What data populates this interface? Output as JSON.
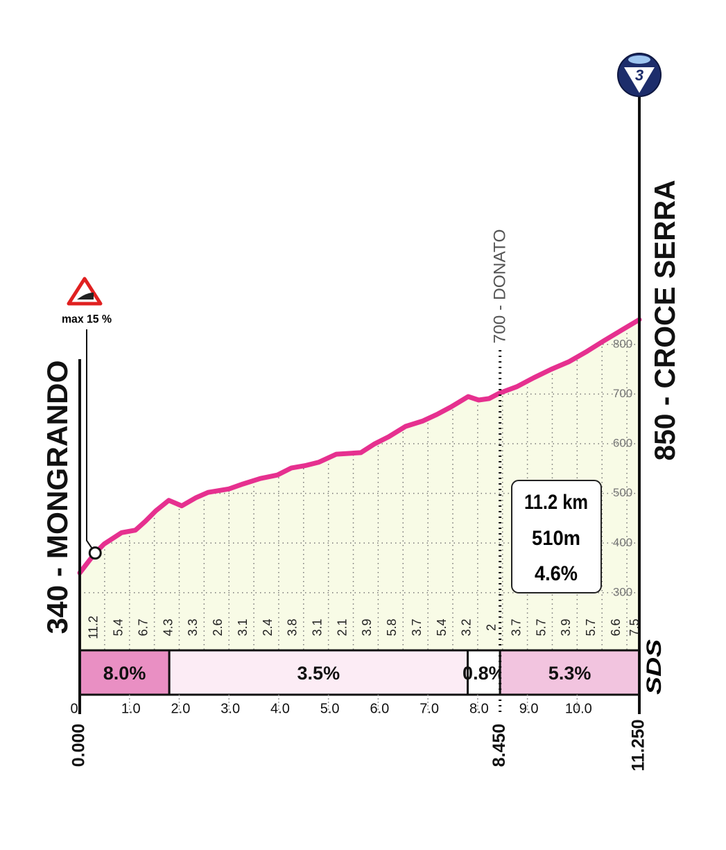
{
  "chart_data": {
    "type": "area",
    "color": "#e6308f",
    "fill": "#f8fbe6",
    "x": [
      0,
      0.31,
      0.49,
      0.84,
      1.12,
      1.32,
      1.53,
      1.79,
      2.05,
      2.33,
      2.58,
      3.0,
      3.28,
      3.63,
      3.97,
      4.25,
      4.53,
      4.81,
      5.16,
      5.65,
      5.93,
      6.21,
      6.55,
      6.9,
      7.18,
      7.46,
      7.81,
      8.02,
      8.23,
      8.44,
      8.79,
      9.13,
      9.48,
      9.83,
      10.18,
      10.53,
      10.88,
      11.25
    ],
    "values": [
      340,
      380,
      398,
      421,
      426,
      444,
      465,
      486,
      475,
      491,
      502,
      509,
      519,
      530,
      537,
      551,
      556,
      563,
      579,
      582,
      600,
      614,
      635,
      646,
      659,
      674,
      695,
      688,
      691,
      702,
      715,
      733,
      750,
      765,
      785,
      807,
      828,
      850
    ],
    "xlim": [
      0,
      11.25
    ],
    "ylim": [
      184,
      850
    ],
    "xticks": [
      0,
      {
        "value": 1,
        "label": "1.0"
      },
      {
        "value": 2,
        "label": "2.0"
      },
      {
        "value": 3,
        "label": "3.0"
      },
      {
        "value": 4,
        "label": "4.0"
      },
      {
        "value": 5,
        "label": "5.0"
      },
      {
        "value": 6,
        "label": "6.0"
      },
      {
        "value": 7,
        "label": "7.0"
      },
      {
        "value": 8,
        "label": "8.0"
      },
      {
        "value": 9,
        "label": "9.0"
      },
      {
        "value": 10,
        "label": "10.0"
      }
    ],
    "yticks": [
      300,
      400,
      500,
      600,
      700,
      800
    ],
    "grid": true,
    "grades": {
      "values": [
        11.2,
        5.4,
        6.7,
        4.3,
        3.3,
        2.6,
        3.1,
        2.4,
        3.8,
        3.1,
        2.1,
        3.9,
        5.8,
        3.7,
        5.4,
        3.2,
        2.0,
        3.7,
        5.7,
        3.9,
        5.7,
        6.6,
        7.5
      ],
      "bins": [
        0,
        0.5,
        1,
        1.5,
        2,
        2.5,
        3,
        3.5,
        4,
        4.5,
        5,
        5.5,
        6,
        6.5,
        7,
        7.5,
        8,
        8.5,
        9,
        9.5,
        10,
        10.5,
        11,
        11.25
      ]
    },
    "sections": {
      "values": [
        8.0,
        3.5,
        0.8,
        5.3
      ],
      "value_labels": [
        "8.0%",
        "3.5%",
        "0.8%",
        "5.3%"
      ],
      "bins": [
        0,
        1.8,
        7.8,
        8.45,
        11.25
      ],
      "colors": [
        "#e98fc3",
        "#fcecf5",
        "#ffffff",
        "#f2c4df"
      ]
    },
    "waypoints": [
      {
        "distance": {
          "value": 0,
          "label": "0.000"
        },
        "label": "340 - MONGRANDO"
      },
      {
        "distance": {
          "value": 8.45,
          "label": "8.450"
        },
        "label": "700 - DONATO"
      },
      {
        "distance": {
          "value": 11.25,
          "label": "11.250"
        },
        "label": "850 - CROCE SERRA"
      }
    ],
    "max_gradient": {
      "label": "max 15 %",
      "x": 0.31
    },
    "summary": [
      "11.2 km",
      "510m",
      "4.6%"
    ],
    "badge": "3",
    "logo": "SDS"
  }
}
